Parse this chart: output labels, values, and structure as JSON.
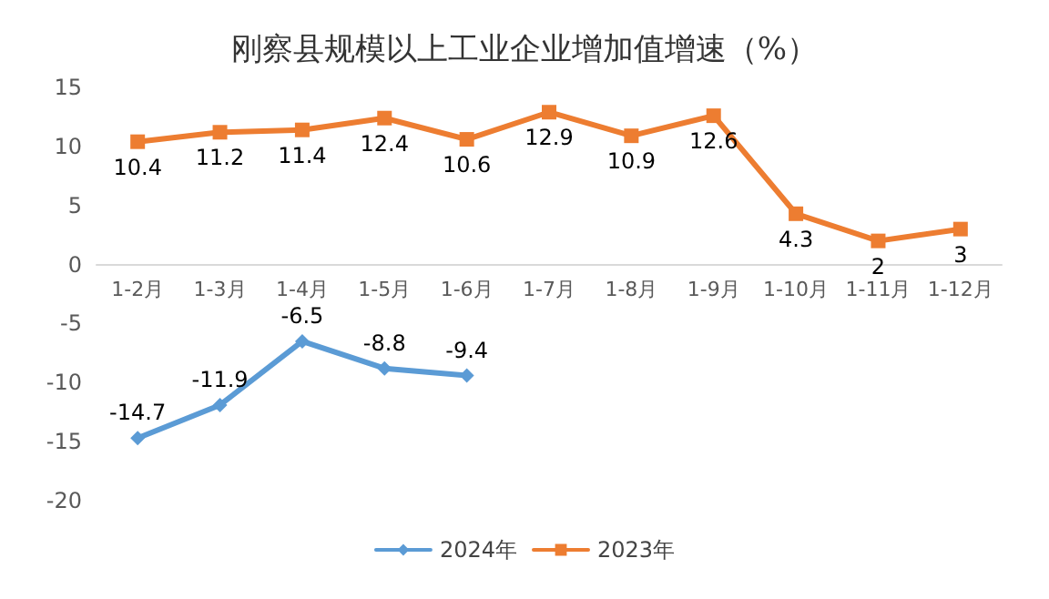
{
  "chart_data": {
    "type": "line",
    "title": "刚察县规模以上工业企业增加值增速（%）",
    "categories": [
      "1-2月",
      "1-3月",
      "1-4月",
      "1-5月",
      "1-6月",
      "1-7月",
      "1-8月",
      "1-9月",
      "1-10月",
      "1-11月",
      "1-12月"
    ],
    "series": [
      {
        "name": "2024年",
        "color": "#5b9bd5",
        "marker": "diamond",
        "values": [
          -14.7,
          -11.9,
          -6.5,
          -8.8,
          -9.4,
          null,
          null,
          null,
          null,
          null,
          null
        ]
      },
      {
        "name": "2023年",
        "color": "#ed7d31",
        "marker": "square",
        "values": [
          10.4,
          11.2,
          11.4,
          12.4,
          10.6,
          12.9,
          10.9,
          12.6,
          4.3,
          2,
          3
        ]
      }
    ],
    "ylim": [
      -20,
      15
    ],
    "yticks": [
      -20,
      -15,
      -10,
      -5,
      0,
      5,
      10,
      15
    ],
    "grid": false,
    "legend": "bottom",
    "data_labels": true
  }
}
